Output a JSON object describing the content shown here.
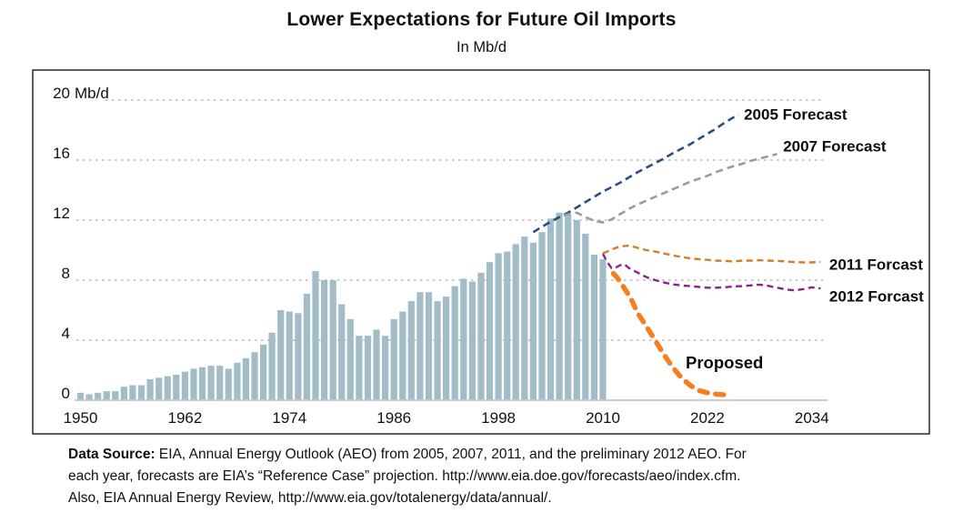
{
  "page": {
    "title": "Lower Expectations for Future Oil Imports",
    "subtitle": "In Mb/d"
  },
  "footer": {
    "label": "Data Source:",
    "line1_rest": " EIA, Annual Energy Outlook (AEO) from 2005, 2007, 2011, and the preliminary 2012 AEO. For",
    "line2": "each year, forecasts are EIA’s “Reference Case” projection. http://www.eia.doe.gov/forecasts/aeo/index.cfm.",
    "line3": "Also, EIA Annual Energy Review, http://www.eia.gov/totalenergy/data/annual/."
  },
  "chart_data": {
    "type": "bar",
    "title": "Lower Expectations for Future Oil Imports",
    "subtitle": "In Mb/d",
    "unit": "Mb/d",
    "ylim": [
      0,
      20
    ],
    "xlim": [
      1949,
      2036
    ],
    "grid": "horizontal-dashed",
    "yticks": [
      {
        "value": 0,
        "label": "0"
      },
      {
        "value": 4,
        "label": "4"
      },
      {
        "value": 8,
        "label": "8"
      },
      {
        "value": 12,
        "label": "12"
      },
      {
        "value": 16,
        "label": "16"
      },
      {
        "value": 20,
        "label": "20",
        "suffix": "Mb/d"
      }
    ],
    "xticks": [
      1950,
      1962,
      1974,
      1986,
      1998,
      2010,
      2022,
      2034
    ],
    "bars": {
      "name": "historical-net-oil-imports",
      "color": "#a2bdc8",
      "start_year": 1950,
      "values": [
        0.5,
        0.4,
        0.5,
        0.6,
        0.6,
        0.9,
        1.0,
        1.0,
        1.4,
        1.5,
        1.6,
        1.7,
        1.9,
        2.1,
        2.2,
        2.3,
        2.3,
        2.1,
        2.5,
        2.8,
        3.2,
        3.7,
        4.5,
        6.0,
        5.9,
        5.8,
        7.1,
        8.6,
        8.0,
        8.0,
        6.4,
        5.4,
        4.3,
        4.3,
        4.7,
        4.3,
        5.4,
        5.9,
        6.6,
        7.2,
        7.2,
        6.6,
        6.9,
        7.6,
        8.1,
        7.9,
        8.5,
        9.2,
        9.8,
        9.9,
        10.4,
        10.9,
        10.5,
        11.2,
        12.1,
        12.5,
        12.4,
        12.0,
        11.1,
        9.7,
        9.4
      ]
    },
    "series": [
      {
        "name": "2005 Forecast",
        "label": "2005 Forecast",
        "color": "#2b4e7e",
        "dash": [
          8,
          5
        ],
        "width": 2.6,
        "label_xy": [
          2026.2,
          19.05
        ],
        "points": [
          [
            2002,
            11.2
          ],
          [
            2003,
            11.55
          ],
          [
            2004,
            11.9
          ],
          [
            2005,
            12.2
          ],
          [
            2006,
            12.5
          ],
          [
            2007,
            12.85
          ],
          [
            2008,
            13.2
          ],
          [
            2009,
            13.55
          ],
          [
            2010,
            13.9
          ],
          [
            2011,
            14.2
          ],
          [
            2012,
            14.5
          ],
          [
            2013,
            14.85
          ],
          [
            2014,
            15.2
          ],
          [
            2015,
            15.5
          ],
          [
            2016,
            15.8
          ],
          [
            2017,
            16.1
          ],
          [
            2018,
            16.45
          ],
          [
            2019,
            16.75
          ],
          [
            2020,
            17.05
          ],
          [
            2021,
            17.4
          ],
          [
            2022,
            17.75
          ],
          [
            2023,
            18.1
          ],
          [
            2024,
            18.5
          ],
          [
            2025,
            18.85
          ],
          [
            2025.6,
            19.0
          ]
        ]
      },
      {
        "name": "2007 Forecast",
        "label": "2007 Forecast",
        "color": "#9b9b9b",
        "dash": [
          8,
          5
        ],
        "width": 2.6,
        "label_xy": [
          2030.7,
          16.95
        ],
        "points": [
          [
            2005.5,
            12.3
          ],
          [
            2006,
            12.4
          ],
          [
            2007,
            12.5
          ],
          [
            2008,
            12.2
          ],
          [
            2009,
            11.95
          ],
          [
            2010,
            11.85
          ],
          [
            2011,
            12.05
          ],
          [
            2012,
            12.4
          ],
          [
            2013,
            12.75
          ],
          [
            2014,
            13.05
          ],
          [
            2015,
            13.3
          ],
          [
            2016,
            13.55
          ],
          [
            2017,
            13.8
          ],
          [
            2018,
            14.05
          ],
          [
            2019,
            14.3
          ],
          [
            2020,
            14.55
          ],
          [
            2021,
            14.75
          ],
          [
            2022,
            14.95
          ],
          [
            2023,
            15.2
          ],
          [
            2024,
            15.4
          ],
          [
            2025,
            15.6
          ],
          [
            2026,
            15.75
          ],
          [
            2027,
            15.95
          ],
          [
            2028,
            16.1
          ],
          [
            2029,
            16.25
          ],
          [
            2030,
            16.4
          ]
        ]
      },
      {
        "name": "2011 Forcast",
        "label": "2011 Forcast",
        "color": "#d07f2a",
        "dash": [
          7,
          4.5
        ],
        "width": 2.4,
        "label_xy": [
          2036.0,
          9.05
        ],
        "points": [
          [
            2010,
            9.8
          ],
          [
            2010.5,
            9.9
          ],
          [
            2011,
            10.05
          ],
          [
            2012,
            10.25
          ],
          [
            2013,
            10.3
          ],
          [
            2014,
            10.15
          ],
          [
            2015,
            10.0
          ],
          [
            2016,
            9.9
          ],
          [
            2017,
            9.78
          ],
          [
            2018,
            9.65
          ],
          [
            2019,
            9.55
          ],
          [
            2020,
            9.45
          ],
          [
            2021,
            9.4
          ],
          [
            2022,
            9.35
          ],
          [
            2023,
            9.3
          ],
          [
            2024,
            9.28
          ],
          [
            2025,
            9.25
          ],
          [
            2026,
            9.3
          ],
          [
            2027,
            9.3
          ],
          [
            2028,
            9.33
          ],
          [
            2029,
            9.3
          ],
          [
            2030,
            9.28
          ],
          [
            2031,
            9.25
          ],
          [
            2032,
            9.2
          ],
          [
            2033,
            9.18
          ],
          [
            2034,
            9.18
          ],
          [
            2035,
            9.22
          ]
        ]
      },
      {
        "name": "2012 Forcast",
        "label": "2012 Forcast",
        "color": "#8d208d",
        "dash": [
          7,
          4.5
        ],
        "width": 2.4,
        "label_xy": [
          2036.0,
          6.95
        ],
        "points": [
          [
            2010,
            9.75
          ],
          [
            2010.5,
            9.2
          ],
          [
            2011,
            8.8
          ],
          [
            2011.5,
            8.85
          ],
          [
            2012,
            9.0
          ],
          [
            2012.5,
            9.05
          ],
          [
            2013,
            8.8
          ],
          [
            2014,
            8.5
          ],
          [
            2015,
            8.2
          ],
          [
            2016,
            8.0
          ],
          [
            2017,
            7.85
          ],
          [
            2018,
            7.72
          ],
          [
            2019,
            7.65
          ],
          [
            2020,
            7.6
          ],
          [
            2021,
            7.55
          ],
          [
            2022,
            7.5
          ],
          [
            2023,
            7.5
          ],
          [
            2024,
            7.52
          ],
          [
            2025,
            7.58
          ],
          [
            2026,
            7.6
          ],
          [
            2027,
            7.65
          ],
          [
            2028,
            7.7
          ],
          [
            2029,
            7.62
          ],
          [
            2030,
            7.5
          ],
          [
            2031,
            7.38
          ],
          [
            2032,
            7.32
          ],
          [
            2033,
            7.4
          ],
          [
            2034,
            7.52
          ],
          [
            2035,
            7.45
          ]
        ]
      },
      {
        "name": "Proposed",
        "label": "Proposed",
        "color": "#f57e20",
        "dash": [
          9,
          9
        ],
        "width": 5.5,
        "emphasis": true,
        "label_xy": [
          2019.5,
          2.5
        ],
        "points": [
          [
            2011.2,
            8.45
          ],
          [
            2011.6,
            8.2
          ],
          [
            2012.2,
            7.7
          ],
          [
            2012.8,
            7.15
          ],
          [
            2013.2,
            6.8
          ],
          [
            2014,
            5.8
          ],
          [
            2015,
            4.9
          ],
          [
            2016,
            4.0
          ],
          [
            2017,
            3.05
          ],
          [
            2018,
            2.2
          ],
          [
            2019,
            1.5
          ],
          [
            2020,
            1.0
          ],
          [
            2021,
            0.65
          ],
          [
            2022,
            0.5
          ],
          [
            2023,
            0.4
          ],
          [
            2024.3,
            0.35
          ]
        ]
      }
    ]
  }
}
